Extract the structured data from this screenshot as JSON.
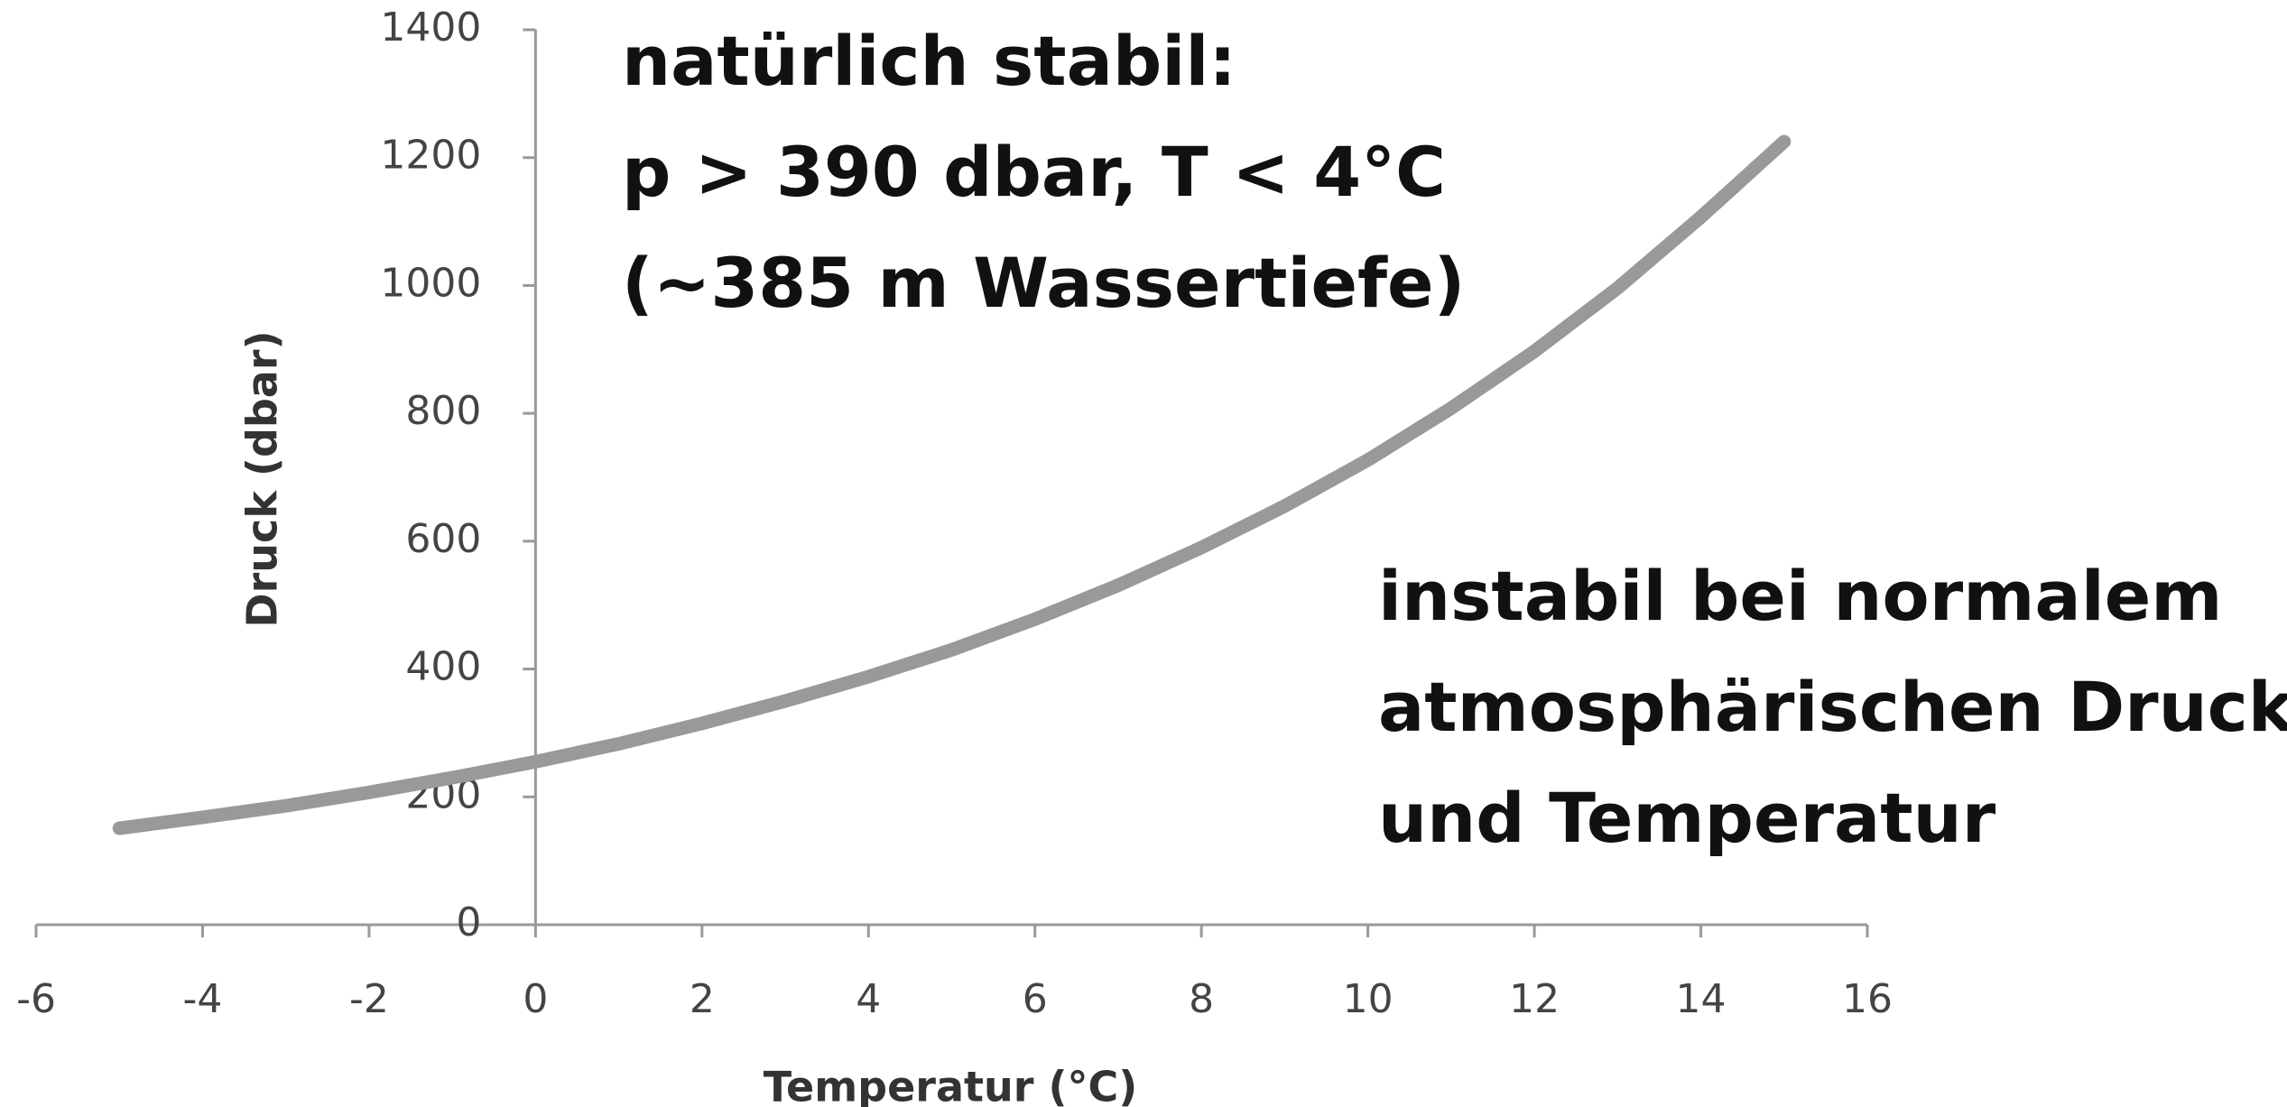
{
  "chart_data": {
    "type": "line",
    "x_label": "Temperatur (°C)",
    "y_label": "Druck (dbar)",
    "annotations": [
      [
        "natürlich stabil:",
        "p > 390 dbar, T < 4°C",
        "(~385 m Wassertiefe)"
      ],
      [
        "instabil bei normalem",
        "atmosphärischen Druck",
        "und Temperatur"
      ]
    ],
    "x": [
      -5,
      -4,
      -3,
      -2,
      -1,
      0,
      1,
      2,
      3,
      4,
      5,
      6,
      7,
      8,
      9,
      10,
      11,
      12,
      13,
      14,
      15
    ],
    "series": [
      {
        "color": "#999999",
        "values": [
          151,
          168,
          186,
          207,
          230,
          255,
          283,
          315,
          350,
          388,
          430,
          478,
          531,
          590,
          655,
          727,
          808,
          897,
          996,
          1107,
          1225
        ]
      }
    ],
    "xlim": [
      -6,
      16
    ],
    "xticks": [
      -6,
      -4,
      -2,
      0,
      2,
      4,
      6,
      8,
      10,
      12,
      14,
      16
    ],
    "ylim": [
      0,
      1400
    ],
    "yticks": [
      0,
      200,
      400,
      600,
      800,
      1000,
      1200,
      1400
    ],
    "grid": false
  }
}
